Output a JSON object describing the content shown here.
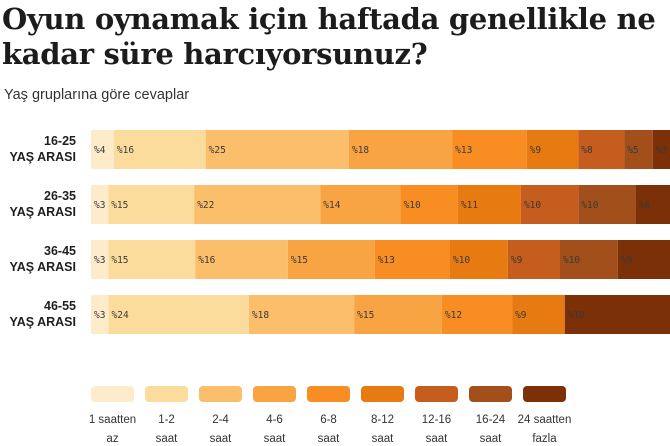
{
  "title": "Oyun oynamak için haftada genellikle ne kadar süre harcıyorsunuz?",
  "subtitle": "Yaş gruplarına göre cevaplar",
  "chart_data": {
    "type": "bar",
    "orientation": "horizontal",
    "stacked": true,
    "title": "Oyun oynamak için haftada genellikle ne kadar süre harcıyorsunuz?",
    "subtitle": "Yaş gruplarına göre cevaplar",
    "value_prefix": "%",
    "categories": [
      [
        "16-25",
        "YAŞ ARASI"
      ],
      [
        "26-35",
        "YAŞ ARASI"
      ],
      [
        "36-45",
        "YAŞ ARASI"
      ],
      [
        "46-55",
        "YAŞ ARASI"
      ]
    ],
    "series": [
      {
        "name": [
          "1 saatten",
          "az"
        ],
        "color": "#fdebc9",
        "values": [
          4,
          3,
          3,
          3
        ]
      },
      {
        "name": [
          "1-2",
          "saat"
        ],
        "color": "#fcdc9c",
        "values": [
          16,
          15,
          15,
          24
        ]
      },
      {
        "name": [
          "2-4",
          "saat"
        ],
        "color": "#fbbe6a",
        "values": [
          25,
          22,
          16,
          18
        ]
      },
      {
        "name": [
          "4-6",
          "saat"
        ],
        "color": "#f9a443",
        "values": [
          18,
          14,
          15,
          15
        ]
      },
      {
        "name": [
          "6-8",
          "saat"
        ],
        "color": "#f78d23",
        "values": [
          13,
          10,
          13,
          12
        ]
      },
      {
        "name": [
          "8-12",
          "saat"
        ],
        "color": "#e87a12",
        "values": [
          9,
          11,
          10,
          9
        ]
      },
      {
        "name": [
          "12-16",
          "saat"
        ],
        "color": "#c45d1d",
        "values": [
          8,
          10,
          9,
          0
        ]
      },
      {
        "name": [
          "16-24",
          "saat"
        ],
        "color": "#a24f1c",
        "values": [
          5,
          10,
          10,
          0
        ]
      },
      {
        "name": [
          "24 saatten",
          "fazla"
        ],
        "color": "#7c3008",
        "values": [
          3,
          6,
          9,
          18
        ]
      }
    ],
    "legend_position": "bottom",
    "grid": false
  }
}
